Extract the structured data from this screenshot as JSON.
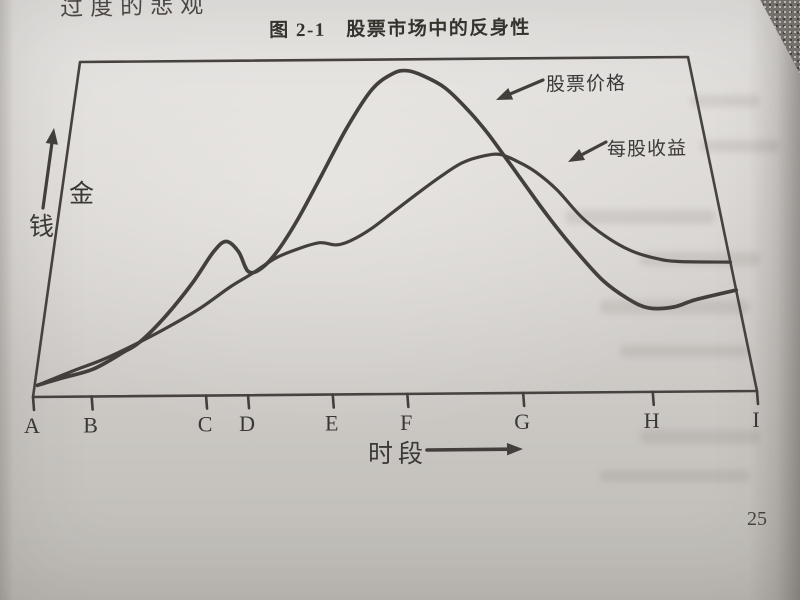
{
  "page": {
    "top_text_fragment": "过度的悲观",
    "page_number": "25"
  },
  "figure": {
    "title": "图 2-1　股票市场中的反身性",
    "y_axis": {
      "label": "金钱",
      "char_top": "金",
      "char_bottom": "钱"
    },
    "x_axis": {
      "label": "时段"
    }
  },
  "chart_data": {
    "type": "line",
    "title": "图 2-1 股票市场中的反身性",
    "xlabel": "时段",
    "ylabel": "金钱",
    "x_ticks": [
      "A",
      "B",
      "C",
      "D",
      "E",
      "F",
      "G",
      "H",
      "I"
    ],
    "x_tick_positions": [
      0,
      8.1,
      23.9,
      29.7,
      41.4,
      51.7,
      67.7,
      85.6,
      100
    ],
    "ylim": [
      0,
      100
    ],
    "y_units": "relative (no numeric scale shown)",
    "grid": false,
    "legend_position": "inline arrow annotations, upper right",
    "series": [
      {
        "name": "股票价格",
        "role": "stock-price",
        "points": [
          [
            0.4,
            3.5
          ],
          [
            3.7,
            5.6
          ],
          [
            7.9,
            8.2
          ],
          [
            12,
            13.3
          ],
          [
            14.1,
            16.2
          ],
          [
            17.5,
            24
          ],
          [
            21,
            33.8
          ],
          [
            23.8,
            43
          ],
          [
            25.6,
            46
          ],
          [
            27.5,
            42.9
          ],
          [
            29.1,
            36.9
          ],
          [
            31.1,
            38.1
          ],
          [
            33.4,
            43.4
          ],
          [
            36.2,
            52.4
          ],
          [
            39.6,
            64.9
          ],
          [
            43.8,
            79.8
          ],
          [
            47.9,
            91.1
          ],
          [
            51.4,
            95.8
          ],
          [
            53.7,
            96.6
          ],
          [
            56.2,
            95.1
          ],
          [
            59.7,
            91.4
          ],
          [
            63.1,
            84.8
          ],
          [
            65.9,
            77.9
          ],
          [
            68.6,
            69.8
          ],
          [
            71.1,
            61.9
          ],
          [
            73.9,
            52.9
          ],
          [
            77.2,
            43.2
          ],
          [
            80.8,
            33.6
          ],
          [
            84.1,
            27.9
          ],
          [
            86.9,
            25.1
          ],
          [
            90.5,
            25.3
          ],
          [
            93.8,
            27.4
          ],
          [
            100,
            30.2
          ]
        ]
      },
      {
        "name": "每股收益",
        "role": "earnings-per-share",
        "points": [
          [
            0.4,
            3.5
          ],
          [
            5.1,
            7.7
          ],
          [
            9.3,
            11.2
          ],
          [
            14.1,
            16.2
          ],
          [
            18.2,
            20.9
          ],
          [
            22.4,
            26.2
          ],
          [
            26.5,
            32.4
          ],
          [
            29.6,
            36.3
          ],
          [
            33.1,
            41
          ],
          [
            36.9,
            44
          ],
          [
            39.6,
            45.4
          ],
          [
            42,
            44.7
          ],
          [
            44.1,
            45.9
          ],
          [
            47.2,
            49.4
          ],
          [
            50.7,
            54.5
          ],
          [
            54.6,
            60.1
          ],
          [
            58.3,
            65.1
          ],
          [
            61.7,
            69
          ],
          [
            65.2,
            71
          ],
          [
            67.7,
            71.3
          ],
          [
            70.3,
            69.1
          ],
          [
            72.8,
            66.1
          ],
          [
            75.8,
            60.6
          ],
          [
            79,
            52.4
          ],
          [
            82.2,
            46.6
          ],
          [
            85.5,
            42.4
          ],
          [
            89.1,
            39.9
          ],
          [
            92.4,
            38.9
          ],
          [
            100,
            38.6
          ]
        ]
      }
    ]
  }
}
